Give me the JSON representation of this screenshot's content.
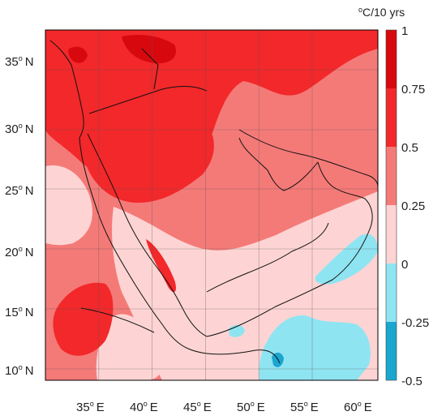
{
  "map": {
    "lon_ticks": [
      {
        "num": "35",
        "hemi": "E"
      },
      {
        "num": "40",
        "hemi": "E"
      },
      {
        "num": "45",
        "hemi": "E"
      },
      {
        "num": "50",
        "hemi": "E"
      },
      {
        "num": "55",
        "hemi": "E"
      },
      {
        "num": "60",
        "hemi": "E"
      }
    ],
    "lat_ticks": [
      {
        "num": "35",
        "hemi": "N"
      },
      {
        "num": "30",
        "hemi": "N"
      },
      {
        "num": "25",
        "hemi": "N"
      },
      {
        "num": "20",
        "hemi": "N"
      },
      {
        "num": "15",
        "hemi": "N"
      },
      {
        "num": "10",
        "hemi": "N"
      }
    ],
    "degree_symbol": "o"
  },
  "colorbar": {
    "unit_sup": "o",
    "unit_rest": "C/10 yrs",
    "labels": [
      "1",
      "0.75",
      "0.5",
      "0.25",
      "0",
      "-0.25",
      "-0.5"
    ],
    "colors": [
      "#d7090f",
      "#f2282a",
      "#f47a78",
      "#fdd4d3",
      "#8fe4f2",
      "#1aa6cf"
    ]
  }
}
